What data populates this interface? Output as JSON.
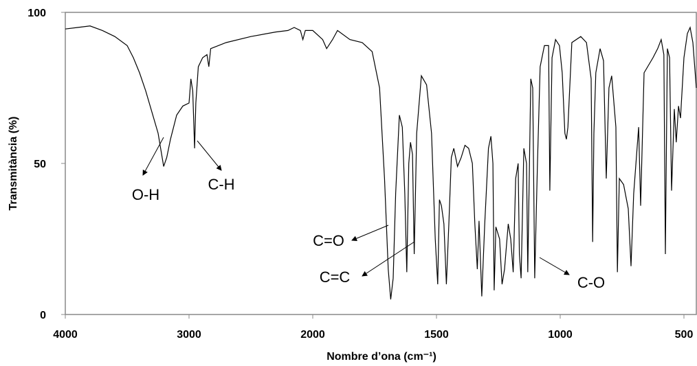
{
  "chart_data": {
    "type": "line",
    "xlabel": "Nombre d’ona (cm⁻¹)",
    "ylabel": "Transmitància (%)",
    "xlim": [
      4000,
      450
    ],
    "xticks": [
      4000,
      3000,
      2000,
      1500,
      1000,
      500
    ],
    "x_reversed": true,
    "ylim": [
      0,
      100
    ],
    "yticks": [
      0,
      50,
      100
    ],
    "annotations": [
      "O-H",
      "C-H",
      "C=O",
      "C=C",
      "C-O"
    ],
    "series": [
      {
        "color": "#000000",
        "x": [
          4000,
          3900,
          3800,
          3700,
          3600,
          3500,
          3450,
          3400,
          3350,
          3300,
          3250,
          3205,
          3180,
          3150,
          3100,
          3050,
          3000,
          2985,
          2970,
          2955,
          2945,
          2925,
          2890,
          2855,
          2840,
          2825,
          2700,
          2500,
          2300,
          2200,
          2150,
          2100,
          2080,
          2060,
          2000,
          1960,
          1944,
          1920,
          1900,
          1850,
          1800,
          1760,
          1730,
          1710,
          1695,
          1685,
          1675,
          1665,
          1650,
          1638,
          1628,
          1620,
          1612,
          1605,
          1597,
          1590,
          1580,
          1561,
          1540,
          1520,
          1505,
          1495,
          1488,
          1480,
          1470,
          1460,
          1450,
          1440,
          1430,
          1415,
          1400,
          1385,
          1370,
          1355,
          1345,
          1335,
          1328,
          1317,
          1305,
          1290,
          1280,
          1272,
          1267,
          1260,
          1245,
          1235,
          1225,
          1210,
          1200,
          1190,
          1180,
          1170,
          1165,
          1158,
          1147,
          1136,
          1131,
          1119,
          1111,
          1103,
          1092,
          1081,
          1064,
          1047,
          1042,
          1033,
          1019,
          1003,
          992,
          981,
          975,
          969,
          953,
          917,
          894,
          875,
          869,
          864,
          856,
          839,
          825,
          814,
          803,
          792,
          775,
          769,
          761,
          744,
          725,
          714,
          703,
          683,
          675,
          661,
          625,
          606,
          592,
          581,
          575,
          567,
          558,
          550,
          539,
          531,
          522,
          514,
          500,
          486,
          475,
          464,
          450
        ],
        "values": [
          94.5,
          95,
          95.5,
          94,
          92,
          89,
          85,
          80,
          74,
          67,
          60,
          49,
          52,
          58,
          66,
          69,
          70,
          78,
          74,
          55,
          70,
          82,
          85,
          86,
          82,
          88,
          90,
          92,
          93.5,
          94,
          95,
          94,
          91,
          94,
          94,
          91,
          88,
          91,
          94,
          91,
          90,
          87,
          75,
          45,
          15,
          5,
          12,
          40,
          66,
          62,
          40,
          14,
          50,
          57,
          53,
          20,
          60,
          79,
          76,
          60,
          25,
          10,
          38,
          36,
          30,
          10,
          30,
          52,
          55,
          49,
          52,
          56,
          55,
          50,
          30,
          15,
          31,
          6,
          30,
          55,
          59,
          50,
          8,
          29,
          25,
          10,
          15,
          30,
          25,
          14,
          45,
          50,
          20,
          12,
          55,
          50,
          14,
          78,
          75,
          12,
          50,
          82,
          89,
          89,
          41,
          85,
          91,
          89,
          80,
          60,
          58,
          62,
          90,
          92,
          90,
          78,
          24,
          60,
          80,
          88,
          84,
          45,
          75,
          79,
          62,
          14,
          45,
          43,
          35,
          16,
          40,
          62,
          36,
          80,
          85,
          88,
          91,
          86,
          20,
          88,
          85,
          41,
          68,
          57,
          69,
          65,
          85,
          93,
          95,
          90,
          75
        ]
      }
    ]
  }
}
